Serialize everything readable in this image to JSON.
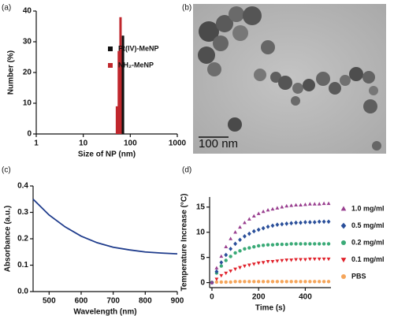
{
  "chart_data": [
    {
      "type": "bar",
      "panel_label": "(a)",
      "xlabel": "Size of NP (nm)",
      "ylabel": "Number (%)",
      "xscale": "log",
      "xlim": [
        1,
        1000
      ],
      "xticks": [
        1,
        10,
        100,
        1000
      ],
      "ylim": [
        0,
        40
      ],
      "yticks": [
        0,
        10,
        20,
        30,
        40
      ],
      "series": [
        {
          "name": "Pt(IV)-MeNP",
          "color": "#111111",
          "x": [
            58,
            64,
            70
          ],
          "values": [
            10,
            28,
            32
          ]
        },
        {
          "name": "NH₂-MeNP",
          "color": "#c0272d",
          "x": [
            52,
            57,
            62
          ],
          "values": [
            9,
            27,
            38
          ]
        }
      ]
    },
    {
      "type": "line",
      "panel_label": "(c)",
      "xlabel": "Wavelength (nm)",
      "ylabel": "Absorbance (a.u.)",
      "xlim": [
        450,
        900
      ],
      "xticks": [
        500,
        600,
        700,
        800,
        900
      ],
      "ylim": [
        0,
        0.4
      ],
      "yticks": [
        {
          "value": 0,
          "label": "0.0"
        },
        0.1,
        0.2,
        0.3,
        0.4
      ],
      "series": [
        {
          "color": "#1f3c8c",
          "x": [
            450,
            500,
            550,
            600,
            650,
            700,
            750,
            800,
            850,
            900
          ],
          "values": [
            0.35,
            0.29,
            0.245,
            0.21,
            0.185,
            0.168,
            0.158,
            0.15,
            0.146,
            0.143
          ]
        }
      ]
    },
    {
      "type": "scatter",
      "panel_label": "(d)",
      "xlabel": "Time (s)",
      "ylabel": "Temperature Increase (°C)",
      "xlim": [
        -10,
        510
      ],
      "xticks": [
        0,
        200,
        400
      ],
      "ylim": [
        -1,
        17
      ],
      "yticks": [
        0,
        5,
        10,
        15
      ],
      "x": [
        0,
        20,
        40,
        60,
        80,
        100,
        120,
        140,
        160,
        180,
        200,
        220,
        240,
        260,
        280,
        300,
        320,
        340,
        360,
        380,
        400,
        420,
        440,
        460,
        480,
        500
      ],
      "series": [
        {
          "name": "1.0 mg/ml",
          "color": "#993f8f",
          "marker": "triangle",
          "values": [
            0,
            2.9,
            5.2,
            7.1,
            8.7,
            10.0,
            11.0,
            11.9,
            12.6,
            13.2,
            13.7,
            14.1,
            14.4,
            14.6,
            14.8,
            15.0,
            15.2,
            15.3,
            15.4,
            15.4,
            15.5,
            15.6,
            15.6,
            15.6,
            15.7,
            15.7
          ]
        },
        {
          "name": "0.5 mg/ml",
          "color": "#2a4f9a",
          "marker": "diamond",
          "values": [
            0,
            2.2,
            4.0,
            5.5,
            6.7,
            7.7,
            8.5,
            9.2,
            9.7,
            10.2,
            10.5,
            10.8,
            11.1,
            11.3,
            11.5,
            11.6,
            11.7,
            11.8,
            11.9,
            11.9,
            12.0,
            12.0,
            12.0,
            12.1,
            12.1,
            12.1
          ]
        },
        {
          "name": "0.2 mg/ml",
          "color": "#3aaa77",
          "marker": "circle",
          "values": [
            0,
            1.9,
            3.3,
            4.4,
            5.2,
            5.9,
            6.3,
            6.7,
            6.9,
            7.1,
            7.3,
            7.4,
            7.5,
            7.5,
            7.6,
            7.6,
            7.6,
            7.7,
            7.7,
            7.7,
            7.7,
            7.7,
            7.7,
            7.7,
            7.7,
            7.7
          ]
        },
        {
          "name": "0.1 mg/ml",
          "color": "#e0202a",
          "marker": "triangle-down",
          "values": [
            0,
            0.7,
            1.4,
            1.9,
            2.3,
            2.7,
            3.0,
            3.3,
            3.5,
            3.7,
            3.9,
            4.0,
            4.2,
            4.2,
            4.3,
            4.4,
            4.5,
            4.5,
            4.6,
            4.6,
            4.6,
            4.7,
            4.7,
            4.7,
            4.7,
            4.7
          ]
        },
        {
          "name": "PBS",
          "color": "#f5a55a",
          "marker": "circle",
          "values": [
            0,
            0.1,
            0.1,
            0.1,
            0.1,
            0.2,
            0.2,
            0.2,
            0.2,
            0.2,
            0.2,
            0.2,
            0.2,
            0.2,
            0.2,
            0.2,
            0.2,
            0.2,
            0.2,
            0.2,
            0.2,
            0.2,
            0.2,
            0.2,
            0.2,
            0.2
          ]
        }
      ]
    }
  ],
  "image": {
    "panel_label": "(b)",
    "scale_label": "100 nm"
  }
}
